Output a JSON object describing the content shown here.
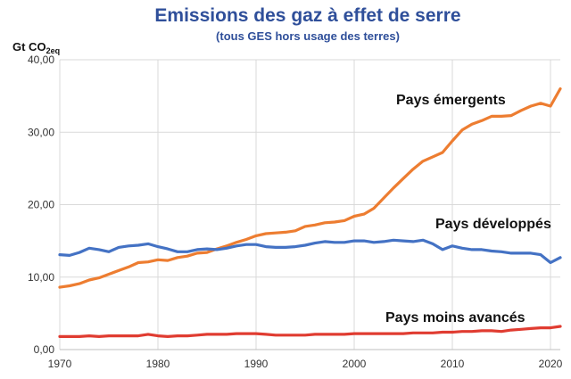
{
  "chart_data": {
    "type": "line",
    "title": "Emissions des gaz à effet de serre",
    "subtitle": "(tous GES hors usage des terres)",
    "ylabel_main": "Gt CO",
    "ylabel_sub": "2eq",
    "xlim": [
      1970,
      2021
    ],
    "ylim": [
      0,
      40
    ],
    "x_ticks": [
      1970,
      1980,
      1990,
      2000,
      2010,
      2020
    ],
    "y_ticks": [
      0,
      10,
      20,
      30,
      40
    ],
    "y_tick_labels": [
      "0,00",
      "10,00",
      "20,00",
      "30,00",
      "40,00"
    ],
    "grid": true,
    "x": [
      1970,
      1971,
      1972,
      1973,
      1974,
      1975,
      1976,
      1977,
      1978,
      1979,
      1980,
      1981,
      1982,
      1983,
      1984,
      1985,
      1986,
      1987,
      1988,
      1989,
      1990,
      1991,
      1992,
      1993,
      1994,
      1995,
      1996,
      1997,
      1998,
      1999,
      2000,
      2001,
      2002,
      2003,
      2004,
      2005,
      2006,
      2007,
      2008,
      2009,
      2010,
      2011,
      2012,
      2013,
      2014,
      2015,
      2016,
      2017,
      2018,
      2019,
      2020,
      2021
    ],
    "series": [
      {
        "name": "Pays émergents",
        "color": "#ed7d31",
        "values": [
          8.6,
          8.8,
          9.1,
          9.6,
          9.9,
          10.4,
          10.9,
          11.4,
          12.0,
          12.1,
          12.4,
          12.3,
          12.7,
          12.9,
          13.3,
          13.4,
          13.9,
          14.3,
          14.8,
          15.2,
          15.7,
          16.0,
          16.1,
          16.2,
          16.4,
          17.0,
          17.2,
          17.5,
          17.6,
          17.8,
          18.4,
          18.7,
          19.5,
          20.9,
          22.3,
          23.6,
          24.9,
          26.0,
          26.6,
          27.2,
          28.8,
          30.3,
          31.1,
          31.6,
          32.2,
          32.2,
          32.3,
          33.0,
          33.6,
          34.0,
          33.6,
          36.0
        ]
      },
      {
        "name": "Pays développés",
        "color": "#4472c4",
        "values": [
          13.1,
          13.0,
          13.4,
          14.0,
          13.8,
          13.5,
          14.1,
          14.3,
          14.4,
          14.6,
          14.2,
          13.9,
          13.5,
          13.5,
          13.8,
          13.9,
          13.8,
          14.0,
          14.3,
          14.5,
          14.5,
          14.2,
          14.1,
          14.1,
          14.2,
          14.4,
          14.7,
          14.9,
          14.8,
          14.8,
          15.0,
          15.0,
          14.8,
          14.9,
          15.1,
          15.0,
          14.9,
          15.1,
          14.6,
          13.8,
          14.3,
          14.0,
          13.8,
          13.8,
          13.6,
          13.5,
          13.3,
          13.3,
          13.3,
          13.1,
          12.0,
          12.7
        ]
      },
      {
        "name": "Pays moins avancés",
        "color": "#e03c31",
        "values": [
          1.8,
          1.8,
          1.8,
          1.9,
          1.8,
          1.9,
          1.9,
          1.9,
          1.9,
          2.1,
          1.9,
          1.8,
          1.9,
          1.9,
          2.0,
          2.1,
          2.1,
          2.1,
          2.2,
          2.2,
          2.2,
          2.1,
          2.0,
          2.0,
          2.0,
          2.0,
          2.1,
          2.1,
          2.1,
          2.1,
          2.2,
          2.2,
          2.2,
          2.2,
          2.2,
          2.2,
          2.3,
          2.3,
          2.3,
          2.4,
          2.4,
          2.5,
          2.5,
          2.6,
          2.6,
          2.5,
          2.7,
          2.8,
          2.9,
          3.0,
          3.0,
          3.2
        ]
      }
    ]
  }
}
